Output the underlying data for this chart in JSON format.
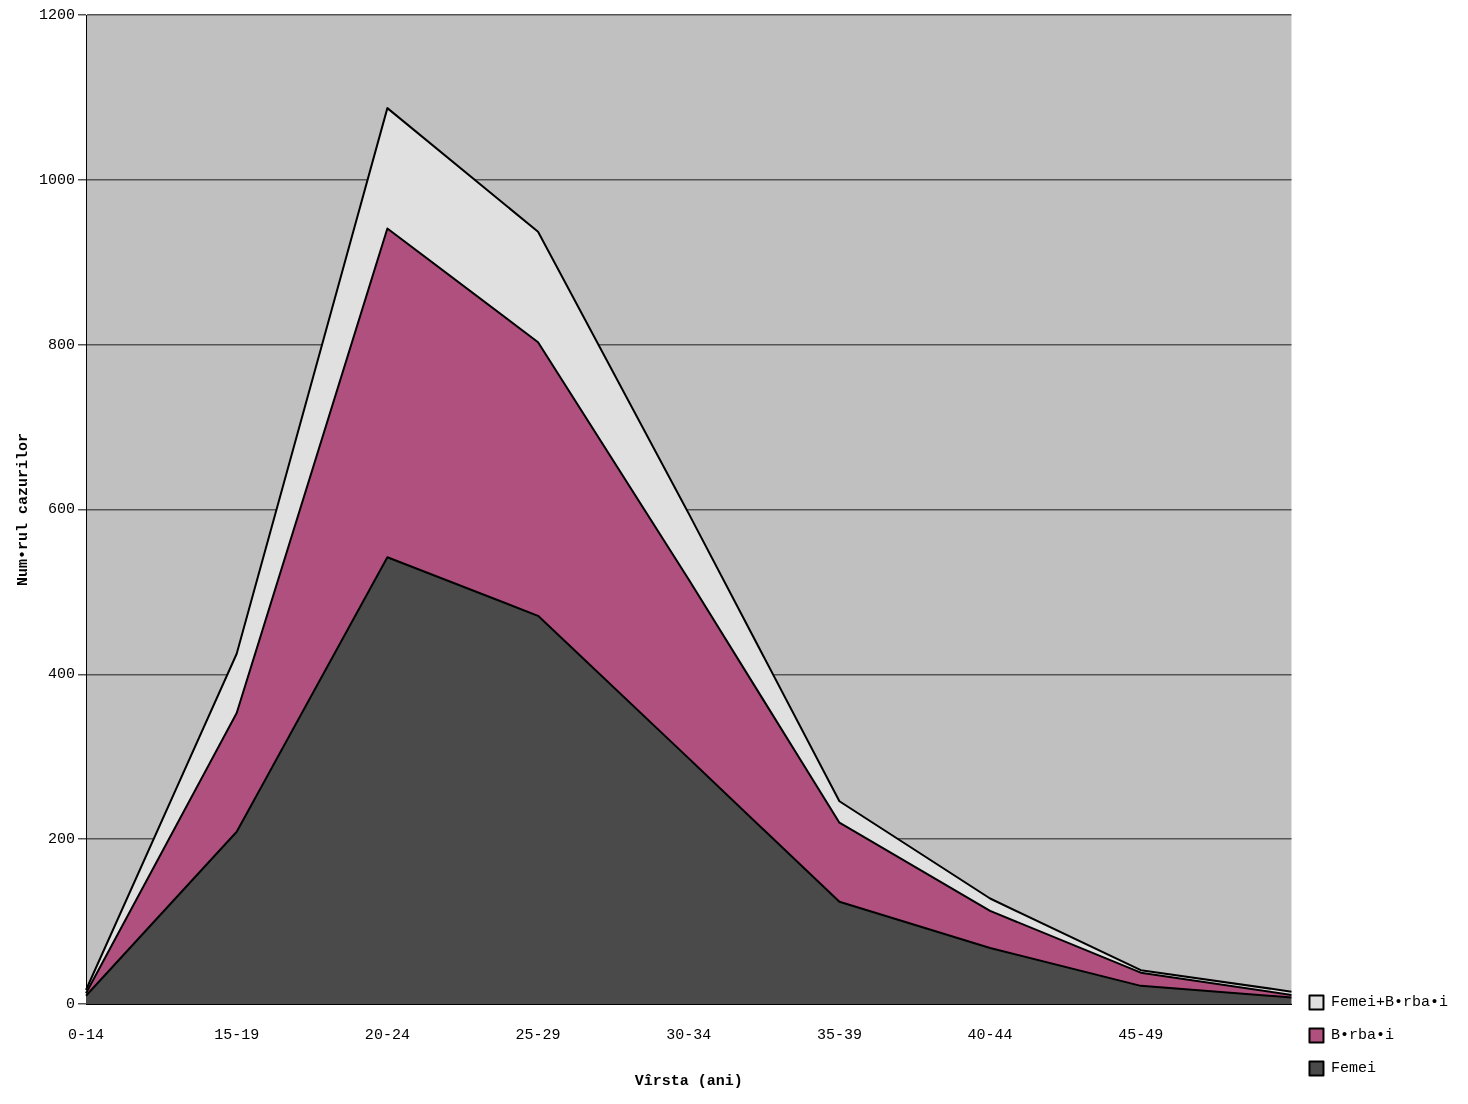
{
  "chart_data": {
    "type": "area",
    "xlabel": "Vîrsta (ani)",
    "ylabel": "Num•rul cazurilor",
    "categories": [
      "0-14",
      "15-19",
      "20-24",
      "25-29",
      "30-34",
      "35-39",
      "40-44",
      "45-49",
      null
    ],
    "series": [
      {
        "name": "Femei+B•rba•i",
        "color": "#e0e0e0",
        "values": [
          17,
          425,
          1087,
          937,
          595,
          246,
          128,
          41,
          15
        ]
      },
      {
        "name": "B•rba•i",
        "color": "#b0507f",
        "values": [
          13,
          353,
          941,
          803,
          515,
          220,
          113,
          38,
          11
        ]
      },
      {
        "name": "Femei",
        "color": "#4a4a4a",
        "values": [
          10,
          209,
          542,
          471,
          298,
          124,
          68,
          22,
          8
        ]
      }
    ],
    "ylim": [
      0,
      1200
    ],
    "yticks": [
      0,
      200,
      400,
      600,
      800,
      1000,
      1200
    ],
    "grid": "y",
    "legend": "bottom right"
  }
}
